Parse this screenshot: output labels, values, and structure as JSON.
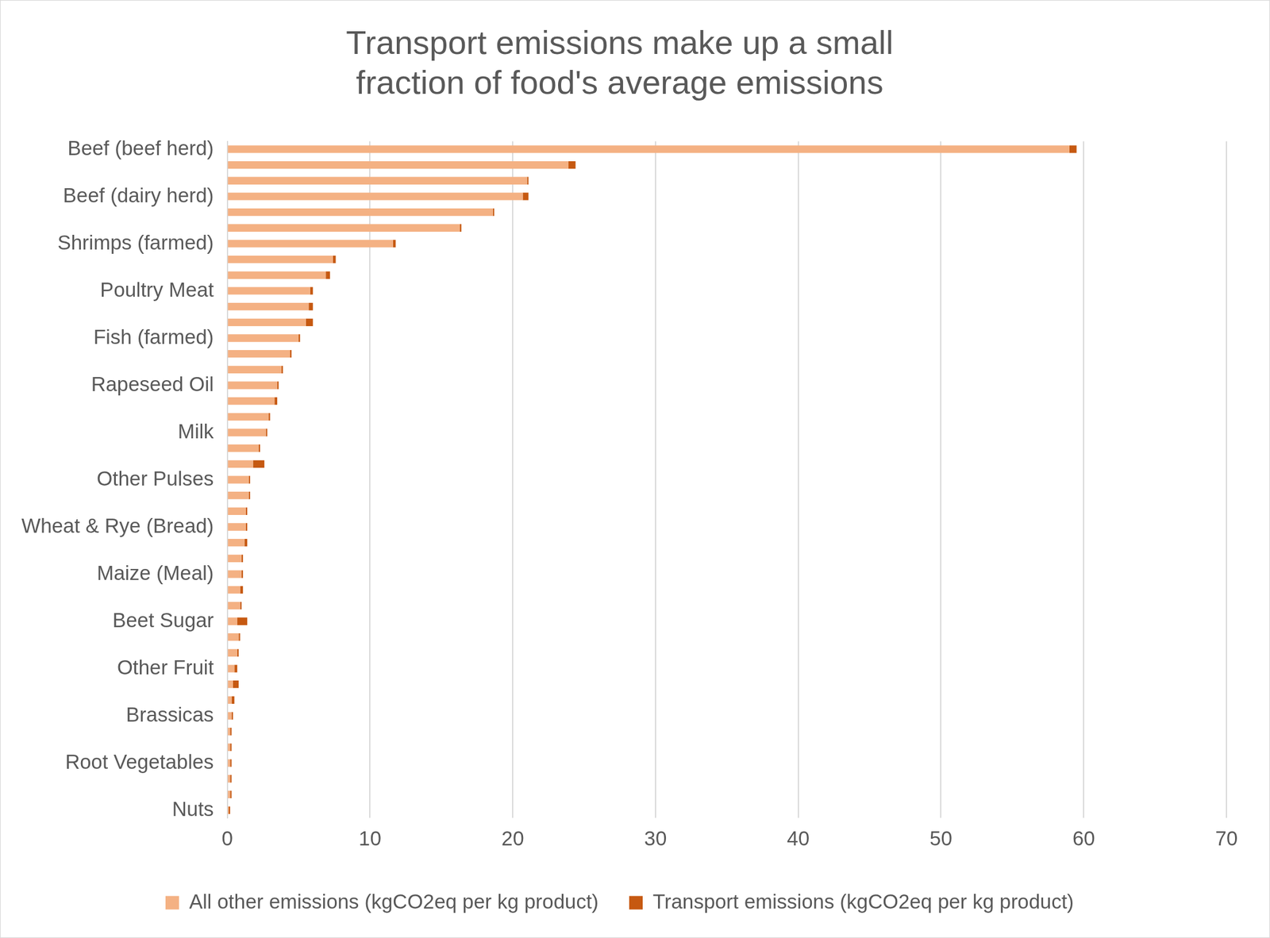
{
  "chart_data": {
    "type": "bar",
    "title": "Transport emissions make up a small fraction of food's average emissions",
    "orientation": "horizontal",
    "stacked": true,
    "grid": true,
    "legend": "bottom",
    "categories": [
      "Beef (beef herd)",
      null,
      null,
      "Beef (dairy herd)",
      null,
      null,
      "Shrimps (farmed)",
      null,
      null,
      "Poultry Meat",
      null,
      null,
      "Fish (farmed)",
      null,
      null,
      "Rapeseed Oil",
      null,
      null,
      "Milk",
      null,
      null,
      "Other Pulses",
      null,
      null,
      "Wheat & Rye (Bread)",
      null,
      null,
      "Maize (Meal)",
      null,
      null,
      "Beet Sugar",
      null,
      null,
      "Other Fruit",
      null,
      null,
      "Brassicas",
      null,
      null,
      "Root Vegetables",
      null,
      null,
      "Nuts"
    ],
    "series": [
      {
        "name": "All other emissions (kgCO2eq per kg product)",
        "color": "#f4b183",
        "values": [
          59.0,
          23.9,
          21.0,
          20.7,
          18.6,
          16.3,
          11.6,
          7.4,
          6.9,
          5.8,
          5.7,
          5.5,
          5.0,
          4.4,
          3.8,
          3.5,
          3.3,
          2.9,
          2.7,
          2.2,
          1.8,
          1.5,
          1.5,
          1.3,
          1.3,
          1.2,
          1.0,
          1.0,
          0.9,
          0.9,
          0.7,
          0.8,
          0.7,
          0.5,
          0.4,
          0.3,
          0.3,
          0.2,
          0.2,
          0.2,
          0.2,
          0.2,
          0.1
        ]
      },
      {
        "name": "Transport emissions (kgCO2eq per kg product)",
        "color": "#c65911",
        "values": [
          0.5,
          0.5,
          0.1,
          0.4,
          0.1,
          0.1,
          0.2,
          0.2,
          0.3,
          0.2,
          0.3,
          0.5,
          0.1,
          0.1,
          0.1,
          0.1,
          0.2,
          0.1,
          0.1,
          0.1,
          0.8,
          0.1,
          0.1,
          0.1,
          0.1,
          0.2,
          0.1,
          0.1,
          0.2,
          0.1,
          0.7,
          0.1,
          0.1,
          0.2,
          0.4,
          0.2,
          0.1,
          0.1,
          0.1,
          0.1,
          0.1,
          0.1,
          0.1
        ]
      }
    ],
    "xlim": [
      0,
      70
    ],
    "xticks": [
      0,
      10,
      20,
      30,
      40,
      50,
      60,
      70
    ]
  }
}
